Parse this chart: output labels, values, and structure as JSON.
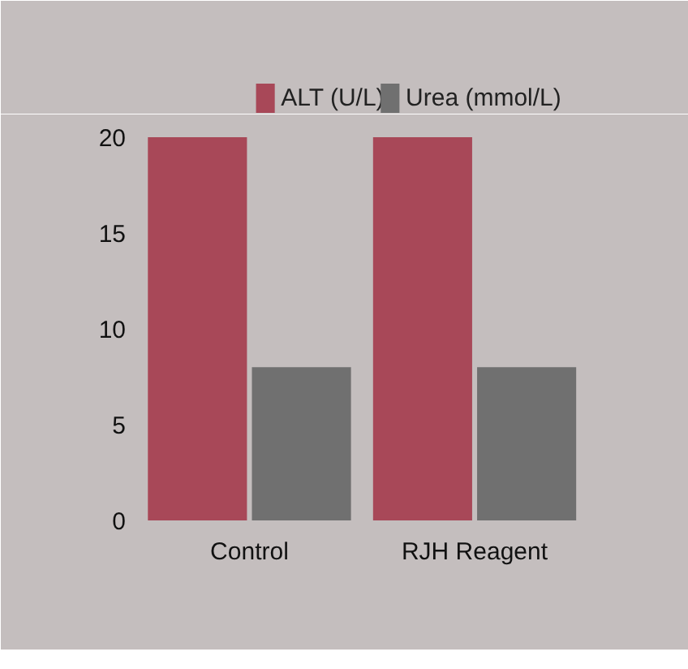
{
  "chart_data": {
    "type": "bar",
    "categories": [
      "Control",
      "RJH Reagent"
    ],
    "series": [
      {
        "name": "ALT (U/L)",
        "color": "#a84858",
        "values": [
          20,
          20
        ]
      },
      {
        "name": "Urea (mmol/L)",
        "color": "#707070",
        "values": [
          8,
          8
        ]
      }
    ],
    "ylim": [
      0,
      20
    ],
    "yticks": [
      0,
      5,
      10,
      15,
      20
    ],
    "grid": false,
    "legend": "top"
  }
}
